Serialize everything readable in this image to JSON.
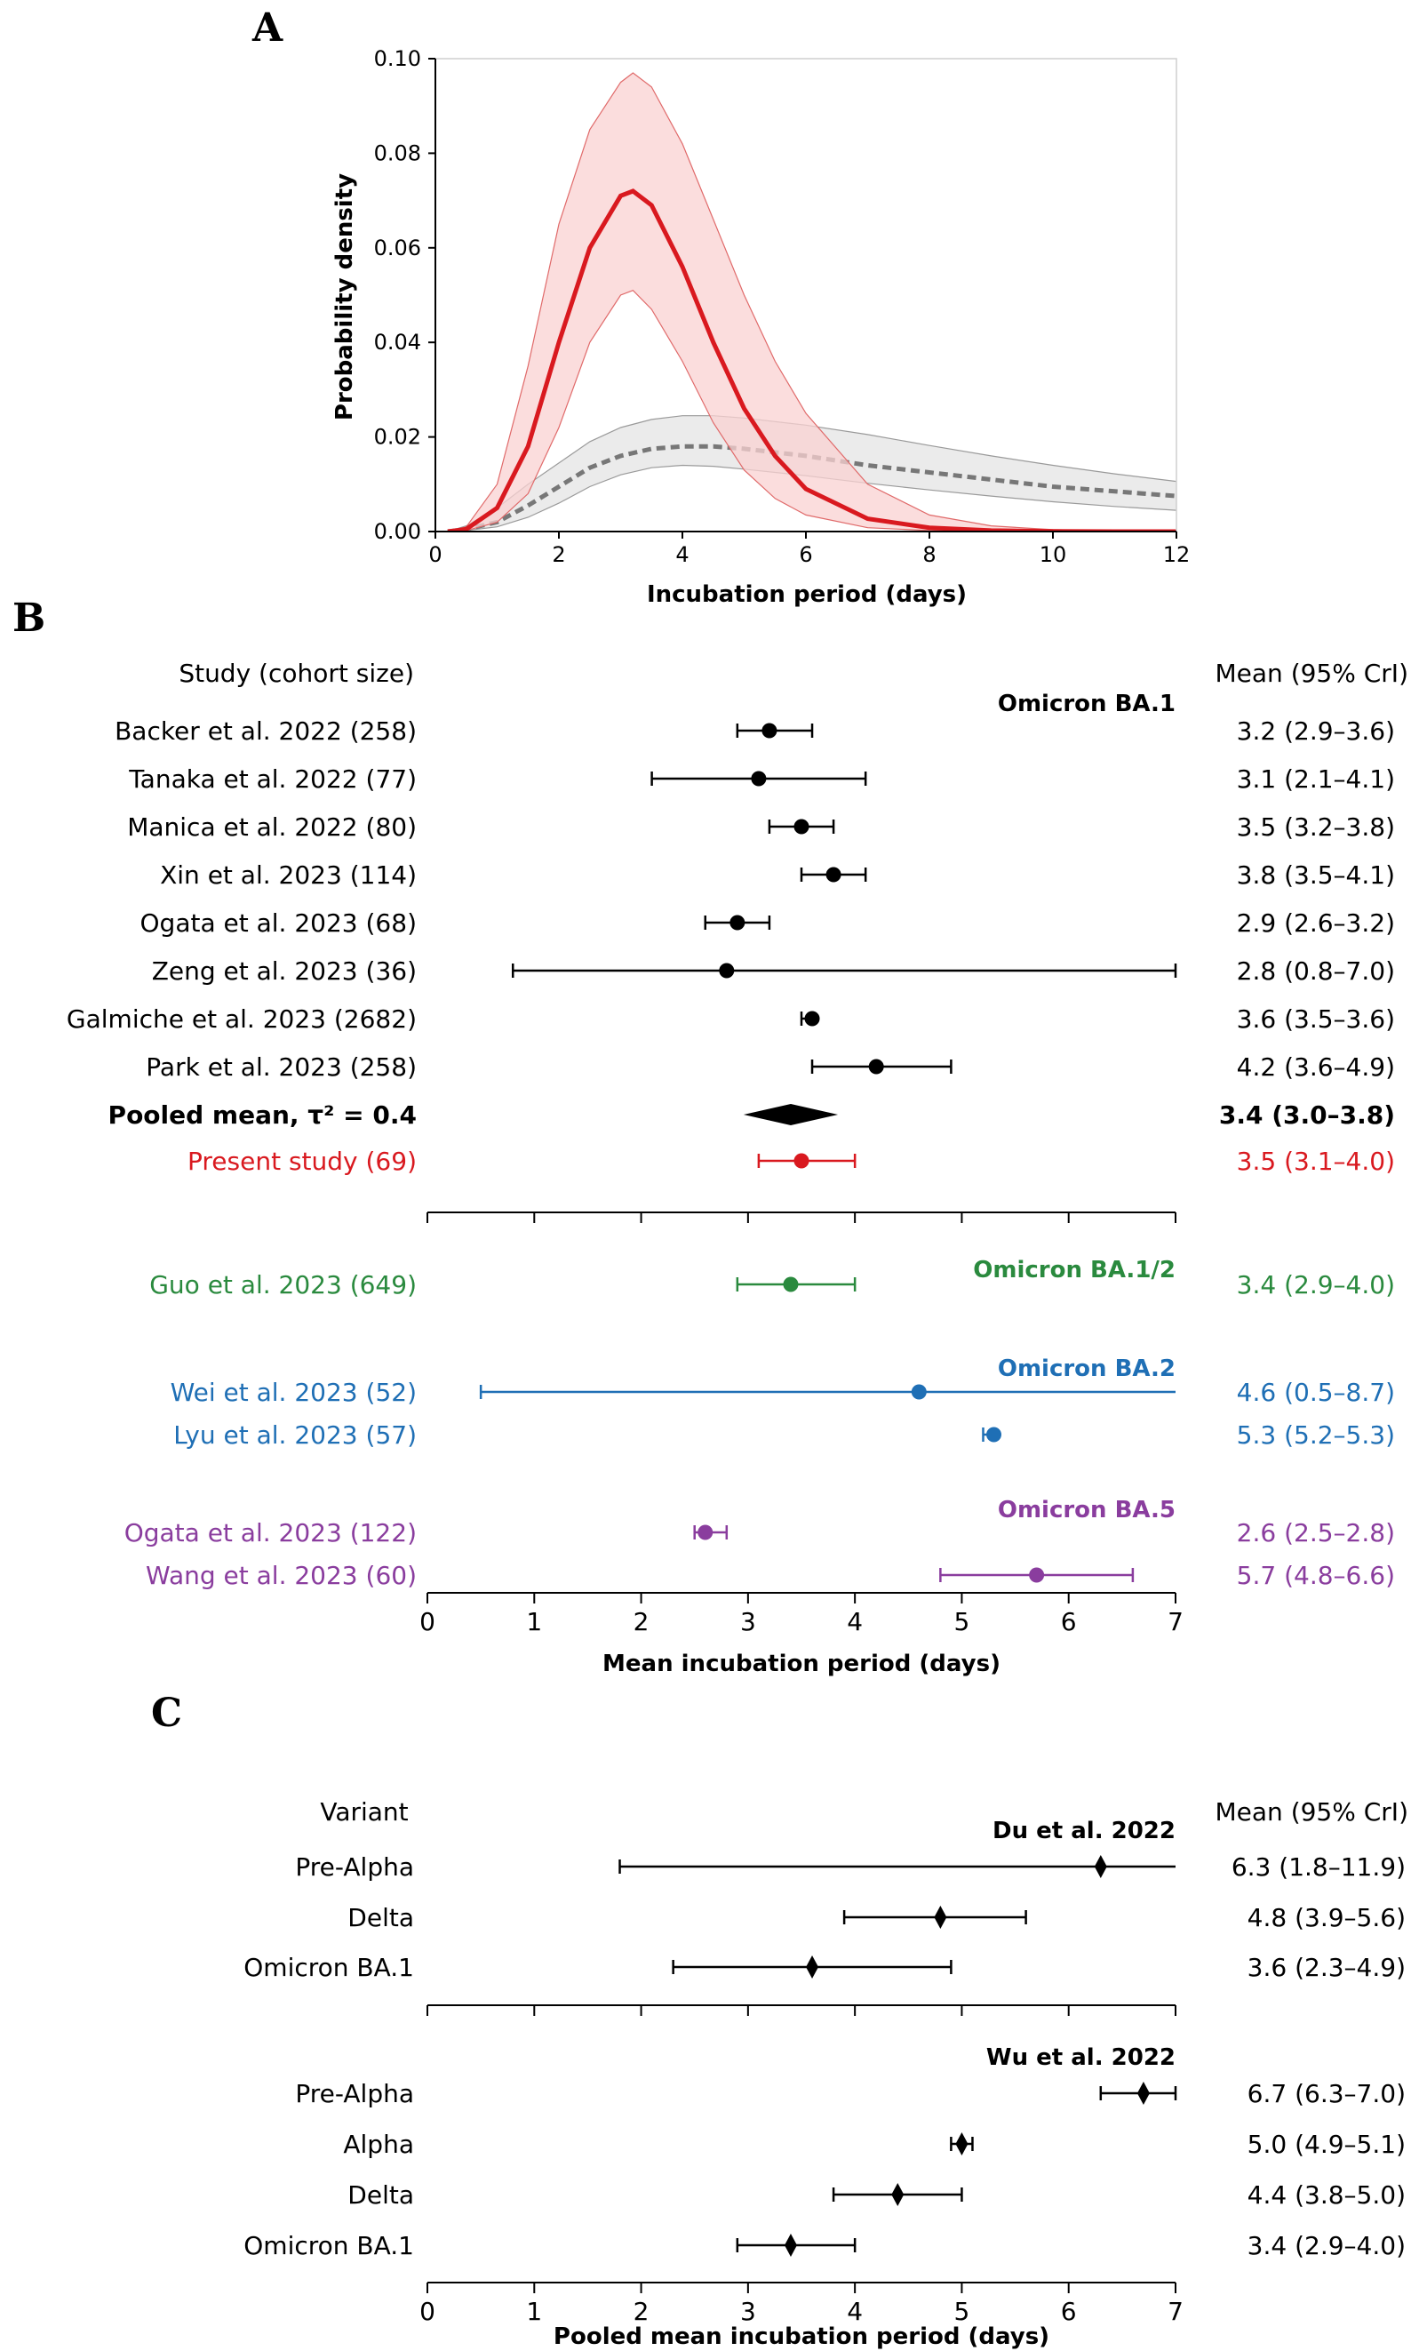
{
  "panels": {
    "a": "A",
    "b": "B",
    "c": "C"
  },
  "colors": {
    "black": "#000000",
    "red": "#d9191f",
    "green": "#2a8a3e",
    "blue": "#1f6fb5",
    "purple": "#8a3d9e",
    "grey": "#777777"
  },
  "chart_data": [
    {
      "type": "line",
      "xlabel": "Incubation period (days)",
      "ylabel": "Probability density",
      "xlim": [
        0,
        12
      ],
      "ylim": [
        0,
        0.1
      ],
      "xticks": [
        "0",
        "2",
        "4",
        "6",
        "8",
        "10",
        "12"
      ],
      "yticks": [
        "0.00",
        "0.02",
        "0.04",
        "0.06",
        "0.08",
        "0.10"
      ],
      "series": [
        {
          "style": "solid",
          "color": "#d9191f",
          "x": [
            0.2,
            0.5,
            1,
            1.5,
            2,
            2.5,
            3,
            3.2,
            3.5,
            4,
            4.5,
            5,
            5.5,
            6,
            7,
            8,
            9,
            10,
            11,
            12
          ],
          "y": [
            0,
            0.0005,
            0.005,
            0.018,
            0.04,
            0.06,
            0.071,
            0.072,
            0.069,
            0.056,
            0.04,
            0.026,
            0.016,
            0.009,
            0.0027,
            0.0008,
            0.0002,
            5e-05,
            0,
            0
          ],
          "lower": [
            0,
            0.0002,
            0.002,
            0.008,
            0.022,
            0.04,
            0.05,
            0.051,
            0.047,
            0.036,
            0.023,
            0.013,
            0.007,
            0.0035,
            0.0008,
            0.0002,
            0,
            0,
            0,
            0
          ],
          "upper": [
            0,
            0.001,
            0.01,
            0.035,
            0.065,
            0.085,
            0.095,
            0.097,
            0.094,
            0.082,
            0.066,
            0.05,
            0.036,
            0.025,
            0.01,
            0.0035,
            0.0012,
            0.0004,
            0.0001,
            0
          ]
        },
        {
          "style": "dashed",
          "color": "#777777",
          "x": [
            0.2,
            0.5,
            1,
            1.5,
            2,
            2.5,
            3,
            3.5,
            4,
            4.5,
            5,
            6,
            7,
            8,
            9,
            10,
            11,
            12
          ],
          "y": [
            0,
            0.0005,
            0.002,
            0.0055,
            0.0095,
            0.0135,
            0.016,
            0.0175,
            0.018,
            0.018,
            0.0175,
            0.016,
            0.014,
            0.0125,
            0.011,
            0.0095,
            0.0085,
            0.0075
          ],
          "lower": [
            0,
            0.0002,
            0.001,
            0.003,
            0.006,
            0.0095,
            0.012,
            0.0135,
            0.014,
            0.0138,
            0.0132,
            0.0118,
            0.0102,
            0.0088,
            0.0075,
            0.0063,
            0.0053,
            0.0045
          ],
          "upper": [
            0,
            0.0012,
            0.005,
            0.01,
            0.0145,
            0.019,
            0.022,
            0.0237,
            0.0245,
            0.0245,
            0.024,
            0.0225,
            0.0205,
            0.0182,
            0.016,
            0.014,
            0.0122,
            0.0106
          ]
        }
      ]
    },
    {
      "type": "forest",
      "xlabel": "Mean incubation period (days)",
      "xlim": [
        0,
        7
      ],
      "xticks": [
        "0",
        "1",
        "2",
        "3",
        "4",
        "5",
        "6",
        "7"
      ],
      "left_header": "Study (cohort size)",
      "right_header": "Mean (95% CrI)",
      "groups": [
        {
          "label": "Omicron BA.1",
          "color": "#000000",
          "rows": [
            {
              "study": "Backer et al. 2022 (258)",
              "mean": 3.2,
              "lo": 2.9,
              "hi": 3.6,
              "text": "3.2 (2.9–3.6)",
              "color": "#000000",
              "marker": "circle"
            },
            {
              "study": "Tanaka et al. 2022 (77)",
              "mean": 3.1,
              "lo": 2.1,
              "hi": 4.1,
              "text": "3.1 (2.1–4.1)",
              "color": "#000000",
              "marker": "circle"
            },
            {
              "study": "Manica et al. 2022 (80)",
              "mean": 3.5,
              "lo": 3.2,
              "hi": 3.8,
              "text": "3.5 (3.2–3.8)",
              "color": "#000000",
              "marker": "circle"
            },
            {
              "study": "Xin et al. 2023 (114)",
              "mean": 3.8,
              "lo": 3.5,
              "hi": 4.1,
              "text": "3.8 (3.5–4.1)",
              "color": "#000000",
              "marker": "circle"
            },
            {
              "study": "Ogata et al. 2023 (68)",
              "mean": 2.9,
              "lo": 2.6,
              "hi": 3.2,
              "text": "2.9 (2.6–3.2)",
              "color": "#000000",
              "marker": "circle"
            },
            {
              "study": "Zeng et al. 2023 (36)",
              "mean": 2.8,
              "lo": 0.8,
              "hi": 7.0,
              "text": "2.8 (0.8–7.0)",
              "color": "#000000",
              "marker": "circle"
            },
            {
              "study": "Galmiche et al. 2023 (2682)",
              "mean": 3.6,
              "lo": 3.5,
              "hi": 3.6,
              "text": "3.6 (3.5–3.6)",
              "color": "#000000",
              "marker": "circle"
            },
            {
              "study": "Park et al. 2023 (258)",
              "mean": 4.2,
              "lo": 3.6,
              "hi": 4.9,
              "text": "4.2 (3.6–4.9)",
              "color": "#000000",
              "marker": "circle"
            },
            {
              "study": "Pooled mean, τ² = 0.4",
              "mean": 3.4,
              "lo": 3.0,
              "hi": 3.8,
              "text": "3.4 (3.0–3.8)",
              "color": "#000000",
              "marker": "pooled",
              "bold": true
            },
            {
              "study": "Present study  (69)",
              "mean": 3.5,
              "lo": 3.1,
              "hi": 4.0,
              "text": "3.5 (3.1–4.0)",
              "color": "#d9191f",
              "marker": "circle"
            }
          ]
        },
        {
          "label": "Omicron BA.1/2",
          "color": "#2a8a3e",
          "rows": [
            {
              "study": "Guo et al. 2023 (649)",
              "mean": 3.4,
              "lo": 2.9,
              "hi": 4.0,
              "text": "3.4 (2.9–4.0)",
              "color": "#2a8a3e",
              "marker": "circle"
            }
          ]
        },
        {
          "label": "Omicron BA.2",
          "color": "#1f6fb5",
          "rows": [
            {
              "study": "Wei et al. 2023 (52)",
              "mean": 4.6,
              "lo": 0.5,
              "hi": 8.7,
              "text": "4.6 (0.5–8.7)",
              "color": "#1f6fb5",
              "marker": "circle"
            },
            {
              "study": "Lyu et al. 2023 (57)",
              "mean": 5.3,
              "lo": 5.2,
              "hi": 5.3,
              "text": "5.3 (5.2–5.3)",
              "color": "#1f6fb5",
              "marker": "circle"
            }
          ]
        },
        {
          "label": "Omicron BA.5",
          "color": "#8a3d9e",
          "rows": [
            {
              "study": "Ogata et al. 2023 (122)",
              "mean": 2.6,
              "lo": 2.5,
              "hi": 2.8,
              "text": "2.6 (2.5–2.8)",
              "color": "#8a3d9e",
              "marker": "circle"
            },
            {
              "study": "Wang et al. 2023 (60)",
              "mean": 5.7,
              "lo": 4.8,
              "hi": 6.6,
              "text": "5.7 (4.8–6.6)",
              "color": "#8a3d9e",
              "marker": "circle"
            }
          ]
        }
      ]
    },
    {
      "type": "forest",
      "xlabel": "Pooled mean incubation period (days)",
      "xlim": [
        0,
        7
      ],
      "xticks": [
        "0",
        "1",
        "2",
        "3",
        "4",
        "5",
        "6",
        "7"
      ],
      "left_header": "Variant",
      "right_header": "Mean (95% CrI)",
      "groups": [
        {
          "label": "Du et al. 2022",
          "color": "#000000",
          "rows": [
            {
              "study": "Pre-Alpha",
              "mean": 6.3,
              "lo": 1.8,
              "hi": 11.9,
              "text": "6.3 (1.8–11.9)",
              "color": "#000000",
              "marker": "diamond"
            },
            {
              "study": "Delta",
              "mean": 4.8,
              "lo": 3.9,
              "hi": 5.6,
              "text": "4.8 (3.9–5.6)",
              "color": "#000000",
              "marker": "diamond"
            },
            {
              "study": "Omicron BA.1",
              "mean": 3.6,
              "lo": 2.3,
              "hi": 4.9,
              "text": "3.6 (2.3–4.9)",
              "color": "#000000",
              "marker": "diamond"
            }
          ]
        },
        {
          "label": "Wu et al. 2022",
          "color": "#000000",
          "rows": [
            {
              "study": "Pre-Alpha",
              "mean": 6.7,
              "lo": 6.3,
              "hi": 7.0,
              "text": "6.7 (6.3–7.0)",
              "color": "#000000",
              "marker": "diamond"
            },
            {
              "study": "Alpha",
              "mean": 5.0,
              "lo": 4.9,
              "hi": 5.1,
              "text": "5.0 (4.9–5.1)",
              "color": "#000000",
              "marker": "diamond"
            },
            {
              "study": "Delta",
              "mean": 4.4,
              "lo": 3.8,
              "hi": 5.0,
              "text": "4.4 (3.8–5.0)",
              "color": "#000000",
              "marker": "diamond"
            },
            {
              "study": "Omicron BA.1",
              "mean": 3.4,
              "lo": 2.9,
              "hi": 4.0,
              "text": "3.4 (2.9–4.0)",
              "color": "#000000",
              "marker": "diamond"
            }
          ]
        }
      ]
    }
  ]
}
